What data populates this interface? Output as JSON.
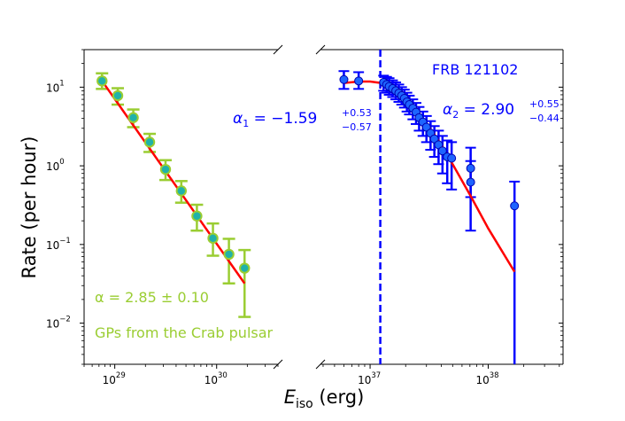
{
  "chart_data": [
    {
      "panel": "left",
      "type": "scatter",
      "title": "",
      "xlabel": "E_iso (erg)",
      "ylabel": "Rate (per hour)",
      "xscale": "log",
      "yscale": "log",
      "xlim": [
        5e+28,
        4e+30
      ],
      "ylim": [
        0.003,
        30
      ],
      "xtick_labels": [
        {
          "base": "10",
          "exp": "29",
          "value": 1e+29
        },
        {
          "base": "10",
          "exp": "30",
          "value": 1e+30
        }
      ],
      "ytick_labels": [
        {
          "base": "10",
          "exp": "1",
          "value": 10
        },
        {
          "base": "10",
          "exp": "0",
          "value": 1
        },
        {
          "base": "10",
          "exp": "−1",
          "value": 0.1
        },
        {
          "base": "10",
          "exp": "−2",
          "value": 0.01
        }
      ],
      "series": [
        {
          "name": "GPs from the Crab pulsar",
          "color": "#9acd32",
          "marker_face": "#20b2aa",
          "points": [
            {
              "x": 7.5e+28,
              "y": 12.0,
              "ylo": 9.5,
              "yhi": 15.0
            },
            {
              "x": 1.07e+29,
              "y": 7.8,
              "ylo": 6.0,
              "yhi": 9.7
            },
            {
              "x": 1.52e+29,
              "y": 4.1,
              "ylo": 3.1,
              "yhi": 5.2
            },
            {
              "x": 2.2e+29,
              "y": 2.0,
              "ylo": 1.5,
              "yhi": 2.55
            },
            {
              "x": 3.15e+29,
              "y": 0.9,
              "ylo": 0.66,
              "yhi": 1.18
            },
            {
              "x": 4.5e+29,
              "y": 0.48,
              "ylo": 0.34,
              "yhi": 0.64
            },
            {
              "x": 6.4e+29,
              "y": 0.23,
              "ylo": 0.15,
              "yhi": 0.32
            },
            {
              "x": 9.2e+29,
              "y": 0.12,
              "ylo": 0.072,
              "yhi": 0.185
            },
            {
              "x": 1.32e+30,
              "y": 0.075,
              "ylo": 0.032,
              "yhi": 0.118
            },
            {
              "x": 1.88e+30,
              "y": 0.05,
              "ylo": 0.012,
              "yhi": 0.085
            }
          ]
        },
        {
          "name": "power-law fit",
          "color": "#ff0000",
          "line": [
            [
              7.5e+28,
              12.0
            ],
            [
              1.88e+30,
              0.032
            ]
          ]
        }
      ],
      "annotations": [
        {
          "prefix": "α = 2.85 ± 0.10",
          "color": "#9acd32"
        },
        {
          "text": "GPs from the Crab pulsar",
          "color": "#9acd32"
        }
      ]
    },
    {
      "panel": "right",
      "type": "scatter",
      "title": "FRB 121102",
      "xscale": "log",
      "yscale": "log",
      "xlim": [
        3.8e+36,
        4.3e+38
      ],
      "ylim": [
        0.003,
        30
      ],
      "xtick_labels": [
        {
          "base": "10",
          "exp": "37",
          "value": 1e+37
        },
        {
          "base": "10",
          "exp": "38",
          "value": 1e+38
        }
      ],
      "vline": {
        "x": 1.22e+37,
        "color": "#0000ff",
        "style": "dashed"
      },
      "series": [
        {
          "name": "FRB 121102",
          "color": "#0000ff",
          "points": [
            {
              "x": 6e+36,
              "y": 12.5,
              "ylo": 9.5,
              "yhi": 16.0
            },
            {
              "x": 8e+36,
              "y": 12.0,
              "ylo": 9.5,
              "yhi": 15.5
            },
            {
              "x": 1.3e+37,
              "y": 11.5,
              "ylo": 9.0,
              "yhi": 14.0
            },
            {
              "x": 1.38e+37,
              "y": 10.8,
              "ylo": 8.5,
              "yhi": 13.5
            },
            {
              "x": 1.45e+37,
              "y": 10.2,
              "ylo": 8.0,
              "yhi": 13.0
            },
            {
              "x": 1.55e+37,
              "y": 9.6,
              "ylo": 7.5,
              "yhi": 12.2
            },
            {
              "x": 1.65e+37,
              "y": 9.0,
              "ylo": 7.0,
              "yhi": 11.5
            },
            {
              "x": 1.75e+37,
              "y": 8.4,
              "ylo": 6.5,
              "yhi": 10.8
            },
            {
              "x": 1.85e+37,
              "y": 7.8,
              "ylo": 6.0,
              "yhi": 10.0
            },
            {
              "x": 1.95e+37,
              "y": 7.2,
              "ylo": 5.5,
              "yhi": 9.3
            },
            {
              "x": 2.05e+37,
              "y": 6.5,
              "ylo": 4.9,
              "yhi": 8.5
            },
            {
              "x": 2.15e+37,
              "y": 6.0,
              "ylo": 4.5,
              "yhi": 7.8
            },
            {
              "x": 2.3e+37,
              "y": 5.4,
              "ylo": 3.9,
              "yhi": 7.0
            },
            {
              "x": 2.45e+37,
              "y": 4.8,
              "ylo": 3.4,
              "yhi": 6.3
            },
            {
              "x": 2.6e+37,
              "y": 4.1,
              "ylo": 2.8,
              "yhi": 5.6
            },
            {
              "x": 2.8e+37,
              "y": 3.6,
              "ylo": 2.4,
              "yhi": 4.9
            },
            {
              "x": 3e+37,
              "y": 3.1,
              "ylo": 2.0,
              "yhi": 4.3
            },
            {
              "x": 3.25e+37,
              "y": 2.6,
              "ylo": 1.6,
              "yhi": 3.7
            },
            {
              "x": 3.5e+37,
              "y": 2.2,
              "ylo": 1.3,
              "yhi": 3.2
            },
            {
              "x": 3.8e+37,
              "y": 1.85,
              "ylo": 1.05,
              "yhi": 2.8
            },
            {
              "x": 4.1e+37,
              "y": 1.55,
              "ylo": 0.8,
              "yhi": 2.4
            },
            {
              "x": 4.5e+37,
              "y": 1.3,
              "ylo": 0.6,
              "yhi": 2.1
            },
            {
              "x": 4.9e+37,
              "y": 1.25,
              "ylo": 0.5,
              "yhi": 2.0
            },
            {
              "x": 7.1e+37,
              "y": 0.93,
              "ylo": 0.4,
              "yhi": 1.7
            },
            {
              "x": 7.1e+37,
              "y": 0.62,
              "ylo": 0.15,
              "yhi": 1.15
            },
            {
              "x": 1.67e+38,
              "y": 0.31,
              "ylo": 0.003,
              "yhi": 0.63
            }
          ]
        },
        {
          "name": "broken power-law fit",
          "color": "#ff0000",
          "curve": [
            [
              6e+36,
              11.3
            ],
            [
              8e+36,
              11.8
            ],
            [
              1e+37,
              11.8
            ],
            [
              1.3e+37,
              11.2
            ],
            [
              1.6e+37,
              9.8
            ],
            [
              2e+37,
              7.4
            ],
            [
              2.5e+37,
              5.0
            ],
            [
              3e+37,
              3.4
            ],
            [
              3.5e+37,
              2.5
            ],
            [
              4e+37,
              1.85
            ],
            [
              5e+37,
              1.05
            ],
            [
              7e+37,
              0.43
            ],
            [
              1e+38,
              0.16
            ],
            [
              1.67e+38,
              0.045
            ]
          ]
        }
      ],
      "annotations": [
        {
          "text": "FRB 121102",
          "color": "#0000ff"
        },
        {
          "prefix": "α",
          "sub": "1",
          "eq": " = −1.59",
          "sup": "+0.53",
          "low": "−0.57",
          "color": "#0000ff"
        },
        {
          "prefix": "α",
          "sub": "2",
          "eq": " = 2.90",
          "sup": "+0.55",
          "low": "−0.44",
          "color": "#0000ff"
        }
      ]
    }
  ],
  "axis_labels": {
    "ylabel": "Rate (per hour)",
    "xlabel_main": "E",
    "xlabel_sub": "iso",
    "xlabel_unit": " (erg)"
  }
}
